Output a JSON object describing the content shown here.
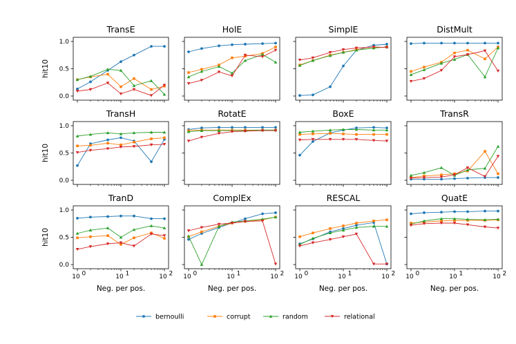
{
  "chart_data": [
    {
      "type": "line",
      "title": "TransE",
      "xscale": "log",
      "x": [
        1,
        2,
        5,
        10,
        20,
        50,
        100
      ],
      "ylim": [
        0,
        1
      ],
      "ylabel": "hit10",
      "series": [
        {
          "name": "bernoulli",
          "values": [
            0.13,
            0.26,
            0.47,
            0.63,
            0.75,
            0.91,
            0.91
          ]
        },
        {
          "name": "corrupt",
          "values": [
            0.3,
            0.35,
            0.4,
            0.17,
            0.32,
            0.12,
            0.18
          ]
        },
        {
          "name": "random",
          "values": [
            0.3,
            0.36,
            0.49,
            0.47,
            0.19,
            0.28,
            0.03
          ]
        },
        {
          "name": "relational",
          "values": [
            0.09,
            0.12,
            0.24,
            0.04,
            0.12,
            0.01,
            0.2
          ]
        }
      ]
    },
    {
      "type": "line",
      "title": "HolE",
      "xscale": "log",
      "x": [
        1,
        2,
        5,
        10,
        20,
        50,
        100
      ],
      "ylim": [
        0,
        1
      ],
      "series": [
        {
          "name": "bernoulli",
          "values": [
            0.81,
            0.87,
            0.92,
            0.94,
            0.95,
            0.96,
            0.97
          ]
        },
        {
          "name": "corrupt",
          "values": [
            0.43,
            0.49,
            0.57,
            0.7,
            0.73,
            0.78,
            0.9
          ]
        },
        {
          "name": "random",
          "values": [
            0.35,
            0.45,
            0.54,
            0.42,
            0.65,
            0.76,
            0.62
          ]
        },
        {
          "name": "relational",
          "values": [
            0.23,
            0.29,
            0.44,
            0.37,
            0.75,
            0.72,
            0.84
          ]
        }
      ]
    },
    {
      "type": "line",
      "title": "SimplE",
      "xscale": "log",
      "x": [
        1,
        2,
        5,
        10,
        20,
        50,
        100
      ],
      "ylim": [
        0,
        1
      ],
      "series": [
        {
          "name": "bernoulli",
          "values": [
            0.01,
            0.02,
            0.17,
            0.55,
            0.84,
            0.93,
            0.95
          ]
        },
        {
          "name": "corrupt",
          "values": [
            0.57,
            0.65,
            0.75,
            0.8,
            0.85,
            0.88,
            0.9
          ]
        },
        {
          "name": "random",
          "values": [
            0.56,
            0.65,
            0.74,
            0.8,
            0.84,
            0.88,
            0.9
          ]
        },
        {
          "name": "relational",
          "values": [
            0.66,
            0.7,
            0.8,
            0.85,
            0.88,
            0.9,
            0.89
          ]
        }
      ]
    },
    {
      "type": "line",
      "title": "DistMult",
      "xscale": "log",
      "x": [
        1,
        2,
        5,
        10,
        20,
        50,
        100
      ],
      "ylim": [
        0,
        1
      ],
      "series": [
        {
          "name": "bernoulli",
          "values": [
            0.96,
            0.97,
            0.97,
            0.97,
            0.97,
            0.97,
            0.97
          ]
        },
        {
          "name": "corrupt",
          "values": [
            0.45,
            0.53,
            0.62,
            0.79,
            0.84,
            0.68,
            0.9
          ]
        },
        {
          "name": "random",
          "values": [
            0.39,
            0.48,
            0.6,
            0.67,
            0.76,
            0.35,
            0.88
          ]
        },
        {
          "name": "relational",
          "values": [
            0.27,
            0.32,
            0.47,
            0.72,
            0.76,
            0.83,
            0.46
          ]
        }
      ]
    },
    {
      "type": "line",
      "title": "TransH",
      "xscale": "log",
      "x": [
        1,
        2,
        5,
        10,
        20,
        50,
        100
      ],
      "ylim": [
        0,
        1
      ],
      "ylabel": "hit10",
      "series": [
        {
          "name": "bernoulli",
          "values": [
            0.27,
            0.67,
            0.74,
            0.78,
            0.72,
            0.34,
            0.75
          ]
        },
        {
          "name": "corrupt",
          "values": [
            0.63,
            0.64,
            0.68,
            0.65,
            0.7,
            0.76,
            0.78
          ]
        },
        {
          "name": "random",
          "values": [
            0.81,
            0.84,
            0.87,
            0.85,
            0.87,
            0.88,
            0.88
          ]
        },
        {
          "name": "relational",
          "values": [
            0.51,
            0.55,
            0.58,
            0.61,
            0.62,
            0.65,
            0.66
          ]
        }
      ]
    },
    {
      "type": "line",
      "title": "RotatE",
      "xscale": "log",
      "x": [
        1,
        2,
        5,
        10,
        20,
        50,
        100
      ],
      "ylim": [
        0,
        1
      ],
      "series": [
        {
          "name": "bernoulli",
          "values": [
            0.93,
            0.96,
            0.97,
            0.97,
            0.97,
            0.97,
            0.97
          ]
        },
        {
          "name": "corrupt",
          "values": [
            0.91,
            0.92,
            0.92,
            0.92,
            0.92,
            0.92,
            0.92
          ]
        },
        {
          "name": "random",
          "values": [
            0.89,
            0.91,
            0.91,
            0.91,
            0.91,
            0.92,
            0.92
          ]
        },
        {
          "name": "relational",
          "values": [
            0.72,
            0.79,
            0.86,
            0.89,
            0.9,
            0.91,
            0.91
          ]
        }
      ]
    },
    {
      "type": "line",
      "title": "BoxE",
      "xscale": "log",
      "x": [
        1,
        2,
        5,
        10,
        20,
        50,
        100
      ],
      "ylim": [
        0,
        1
      ],
      "series": [
        {
          "name": "bernoulli",
          "values": [
            0.46,
            0.71,
            0.87,
            0.92,
            0.96,
            0.97,
            0.96
          ]
        },
        {
          "name": "corrupt",
          "values": [
            0.84,
            0.85,
            0.86,
            0.85,
            0.84,
            0.84,
            0.84
          ]
        },
        {
          "name": "random",
          "values": [
            0.88,
            0.9,
            0.92,
            0.93,
            0.93,
            0.92,
            0.92
          ]
        },
        {
          "name": "relational",
          "values": [
            0.74,
            0.75,
            0.75,
            0.75,
            0.75,
            0.73,
            0.72
          ]
        }
      ]
    },
    {
      "type": "line",
      "title": "TransR",
      "xscale": "log",
      "x": [
        1,
        2,
        5,
        10,
        20,
        50,
        100
      ],
      "ylim": [
        0,
        1
      ],
      "series": [
        {
          "name": "bernoulli",
          "values": [
            0.02,
            0.02,
            0.02,
            0.03,
            0.04,
            0.05,
            0.05
          ]
        },
        {
          "name": "corrupt",
          "values": [
            0.05,
            0.08,
            0.1,
            0.12,
            0.17,
            0.53,
            0.12
          ]
        },
        {
          "name": "random",
          "values": [
            0.09,
            0.14,
            0.23,
            0.09,
            0.19,
            0.22,
            0.62
          ]
        },
        {
          "name": "relational",
          "values": [
            0.04,
            0.05,
            0.06,
            0.1,
            0.23,
            0.07,
            0.44
          ]
        }
      ]
    },
    {
      "type": "line",
      "title": "TranD",
      "xscale": "log",
      "x": [
        1,
        2,
        5,
        10,
        20,
        50,
        100
      ],
      "ylim": [
        0,
        1
      ],
      "ylabel": "hit10",
      "xlabel": "Neg. per pos.",
      "series": [
        {
          "name": "bernoulli",
          "values": [
            0.85,
            0.87,
            0.88,
            0.89,
            0.89,
            0.84,
            0.84
          ]
        },
        {
          "name": "corrupt",
          "values": [
            0.49,
            0.51,
            0.53,
            0.37,
            0.49,
            0.58,
            0.48
          ]
        },
        {
          "name": "random",
          "values": [
            0.57,
            0.63,
            0.67,
            0.5,
            0.64,
            0.71,
            0.67
          ]
        },
        {
          "name": "relational",
          "values": [
            0.28,
            0.33,
            0.38,
            0.4,
            0.34,
            0.56,
            0.53
          ]
        }
      ]
    },
    {
      "type": "line",
      "title": "ComplEx",
      "xscale": "log",
      "x": [
        1,
        2,
        5,
        10,
        20,
        50,
        100
      ],
      "ylim": [
        0,
        1
      ],
      "xlabel": "Neg. per pos.",
      "series": [
        {
          "name": "bernoulli",
          "values": [
            0.46,
            0.57,
            0.68,
            0.76,
            0.84,
            0.93,
            0.95
          ]
        },
        {
          "name": "corrupt",
          "values": [
            0.51,
            0.6,
            0.7,
            0.76,
            0.79,
            0.82,
            0.87
          ]
        },
        {
          "name": "random",
          "values": [
            0.52,
            0.0,
            0.7,
            0.78,
            0.8,
            0.83,
            0.87
          ]
        },
        {
          "name": "relational",
          "values": [
            0.62,
            0.68,
            0.74,
            0.76,
            0.79,
            0.8,
            0.01
          ]
        }
      ]
    },
    {
      "type": "line",
      "title": "RESCAL",
      "xscale": "log",
      "x": [
        1,
        2,
        5,
        10,
        20,
        50,
        100
      ],
      "ylim": [
        0,
        1
      ],
      "xlabel": "Neg. per pos.",
      "series": [
        {
          "name": "bernoulli",
          "values": [
            0.38,
            0.47,
            0.6,
            0.66,
            0.72,
            0.77,
            0.01
          ]
        },
        {
          "name": "corrupt",
          "values": [
            0.51,
            0.58,
            0.66,
            0.71,
            0.76,
            0.8,
            0.82
          ]
        },
        {
          "name": "random",
          "values": [
            0.37,
            0.48,
            0.58,
            0.63,
            0.68,
            0.7,
            0.7
          ]
        },
        {
          "name": "relational",
          "values": [
            0.34,
            0.4,
            0.46,
            0.51,
            0.56,
            0.01,
            0.01
          ]
        }
      ]
    },
    {
      "type": "line",
      "title": "QuatE",
      "xscale": "log",
      "x": [
        1,
        2,
        5,
        10,
        20,
        50,
        100
      ],
      "ylim": [
        0,
        1
      ],
      "xlabel": "Neg. per pos.",
      "series": [
        {
          "name": "bernoulli",
          "values": [
            0.93,
            0.95,
            0.96,
            0.97,
            0.97,
            0.98,
            0.98
          ]
        },
        {
          "name": "corrupt",
          "values": [
            0.76,
            0.78,
            0.8,
            0.81,
            0.81,
            0.81,
            0.82
          ]
        },
        {
          "name": "random",
          "values": [
            0.74,
            0.8,
            0.84,
            0.84,
            0.83,
            0.82,
            0.83
          ]
        },
        {
          "name": "relational",
          "values": [
            0.72,
            0.75,
            0.76,
            0.76,
            0.73,
            0.69,
            0.67
          ]
        }
      ]
    }
  ],
  "legend": {
    "placement": "bottom-center",
    "items": [
      {
        "name": "bernoulli",
        "color": "#1f77b4",
        "marker": "circle"
      },
      {
        "name": "corrupt",
        "color": "#ff7f0e",
        "marker": "square"
      },
      {
        "name": "random",
        "color": "#2ca02c",
        "marker": "triangle-up"
      },
      {
        "name": "relational",
        "color": "#d62728",
        "marker": "triangle-down"
      }
    ]
  },
  "ytick_labels": [
    "0.0",
    "0.5",
    "1.0"
  ],
  "xtick_labels": [
    "10",
    "0",
    "10",
    "1",
    "10",
    "2"
  ]
}
